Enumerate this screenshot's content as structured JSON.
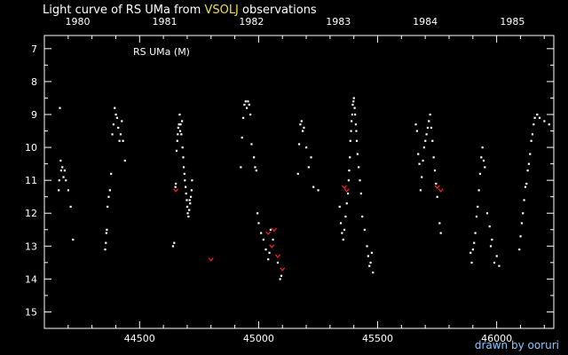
{
  "header": {
    "title_prefix": "Light curve of RS UMa from",
    "title_source": "VSOLJ",
    "title_suffix": "observations"
  },
  "credit": "drawn by ooruri",
  "colors": {
    "background": "#000000",
    "axis": "#ffffff",
    "visual_points": "#ffffff",
    "limit_points": "#ff2020",
    "source_highlight": "#f0e040",
    "credit": "#8cc8ff"
  },
  "chart_data": {
    "type": "scatter",
    "title": "Light curve of RS UMa from VSOLJ observations",
    "plot_label": "RS UMa (M)",
    "xlabel": "",
    "ylabel": "",
    "xlim": [
      44100,
      46240
    ],
    "ylim": [
      15.5,
      6.6
    ],
    "y_inverted": true,
    "grid": false,
    "x_ticks": [
      44500,
      45000,
      45500,
      46000
    ],
    "y_ticks": [
      7,
      8,
      9,
      10,
      11,
      12,
      13,
      14,
      15
    ],
    "year_ticks": [
      {
        "label": "1980",
        "jd": 44240
      },
      {
        "label": "1981",
        "jd": 44605
      },
      {
        "label": "1982",
        "jd": 44970
      },
      {
        "label": "1983",
        "jd": 45335
      },
      {
        "label": "1984",
        "jd": 45700
      },
      {
        "label": "1985",
        "jd": 46066
      }
    ],
    "series": [
      {
        "kind": "visual",
        "x": [
          44160,
          44162,
          44165,
          44168,
          44170,
          44175,
          44180,
          44185,
          44190,
          44200,
          44210,
          44220,
          44355,
          44358,
          44360,
          44362,
          44365,
          44370,
          44375,
          44380,
          44385,
          44390,
          44395,
          44400,
          44405,
          44410,
          44415,
          44420,
          44425,
          44430,
          44438,
          44640,
          44645,
          44650,
          44652,
          44655,
          44658,
          44660,
          44662,
          44665,
          44668,
          44670,
          44672,
          44675,
          44678,
          44680,
          44683,
          44685,
          44688,
          44690,
          44693,
          44695,
          44698,
          44700,
          44702,
          44705,
          44708,
          44710,
          44712,
          44715,
          44718,
          44720,
          44925,
          44930,
          44935,
          44940,
          44945,
          44950,
          44955,
          44960,
          44965,
          44970,
          44980,
          44985,
          44990,
          44995,
          45000,
          45010,
          45020,
          45030,
          45040,
          45045,
          45050,
          45060,
          45080,
          45090,
          45095,
          45165,
          45170,
          45175,
          45180,
          45185,
          45190,
          45200,
          45210,
          45220,
          45230,
          45250,
          45340,
          45345,
          45350,
          45355,
          45360,
          45365,
          45370,
          45375,
          45378,
          45380,
          45383,
          45385,
          45388,
          45390,
          45393,
          45395,
          45398,
          45400,
          45403,
          45405,
          45408,
          45410,
          45412,
          45415,
          45420,
          45425,
          45430,
          45435,
          45445,
          45455,
          45460,
          45465,
          45470,
          45475,
          45480,
          45660,
          45665,
          45670,
          45675,
          45680,
          45685,
          45690,
          45695,
          45700,
          45705,
          45710,
          45715,
          45720,
          45725,
          45730,
          45735,
          45740,
          45745,
          45750,
          45760,
          45765,
          45890,
          45895,
          45900,
          45905,
          45910,
          45915,
          45920,
          45925,
          45930,
          45935,
          45940,
          45945,
          45950,
          45960,
          45970,
          45975,
          45980,
          45990,
          46000,
          46010,
          46095,
          46100,
          46105,
          46110,
          46115,
          46120,
          46125,
          46130,
          46135,
          46140,
          46145,
          46150,
          46155,
          46160,
          46170,
          46180,
          46200,
          46220
        ],
        "y": [
          11.3,
          11.0,
          8.8,
          10.4,
          10.7,
          10.6,
          10.9,
          10.7,
          11.0,
          11.3,
          11.8,
          12.8,
          13.1,
          12.9,
          12.6,
          12.5,
          11.8,
          11.5,
          11.3,
          10.8,
          9.6,
          9.3,
          8.8,
          9.0,
          9.1,
          9.4,
          9.8,
          9.6,
          9.2,
          9.8,
          10.4,
          13.0,
          12.9,
          11.2,
          11.1,
          10.1,
          9.8,
          9.6,
          9.4,
          9.3,
          9.0,
          9.5,
          9.3,
          9.6,
          9.2,
          10.0,
          10.3,
          10.6,
          10.8,
          11.0,
          11.2,
          11.4,
          11.6,
          11.8,
          12.0,
          12.1,
          11.9,
          11.6,
          11.7,
          11.5,
          11.3,
          11.0,
          10.6,
          9.7,
          9.1,
          8.7,
          8.6,
          8.8,
          8.6,
          8.7,
          9.0,
          9.9,
          10.3,
          10.6,
          10.7,
          12.0,
          12.3,
          12.6,
          12.8,
          13.1,
          13.4,
          13.2,
          12.5,
          12.8,
          13.5,
          14.0,
          13.9,
          10.8,
          9.9,
          9.3,
          9.2,
          9.5,
          9.4,
          10.0,
          10.6,
          10.3,
          11.2,
          11.3,
          11.8,
          12.3,
          12.6,
          12.8,
          12.5,
          12.1,
          11.7,
          11.4,
          11.0,
          10.7,
          10.3,
          9.8,
          9.5,
          9.2,
          9.0,
          8.7,
          8.6,
          8.5,
          8.8,
          9.0,
          9.3,
          9.5,
          9.8,
          10.2,
          10.6,
          11.0,
          11.4,
          12.1,
          12.5,
          13.0,
          13.3,
          13.6,
          13.5,
          13.2,
          13.8,
          9.3,
          9.5,
          10.2,
          10.5,
          11.3,
          10.9,
          10.4,
          10.0,
          9.8,
          9.6,
          9.4,
          9.2,
          9.0,
          9.4,
          9.8,
          10.3,
          10.7,
          11.1,
          11.5,
          12.3,
          12.6,
          13.2,
          13.5,
          13.1,
          12.9,
          12.6,
          12.1,
          11.8,
          11.3,
          10.8,
          10.3,
          10.0,
          10.4,
          10.6,
          12.0,
          12.4,
          13.0,
          12.8,
          13.5,
          13.3,
          13.6,
          13.1,
          12.7,
          12.3,
          12.0,
          11.6,
          11.2,
          11.1,
          10.7,
          10.5,
          10.2,
          9.8,
          9.6,
          9.3,
          9.1,
          9.0,
          9.1,
          9.2,
          9.3
        ],
        "color": "#ffffff"
      },
      {
        "kind": "fainter-than",
        "x": [
          44652,
          44800,
          45040,
          45055,
          45065,
          45080,
          45100,
          45360,
          45370,
          45750,
          45765
        ],
        "y": [
          11.3,
          13.4,
          12.6,
          13.0,
          12.5,
          13.3,
          13.7,
          11.2,
          11.3,
          11.2,
          11.3
        ],
        "color": "#ff2020"
      }
    ]
  }
}
